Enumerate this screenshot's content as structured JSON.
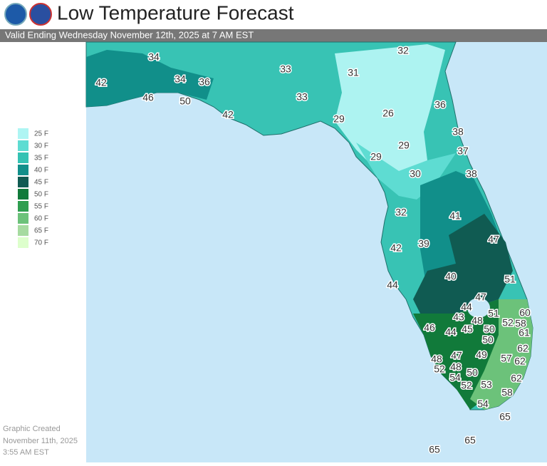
{
  "header": {
    "title": "Low Temperature Forecast",
    "subtitle": "Valid Ending Wednesday November 12th, 2025 at 7 AM EST"
  },
  "legend": [
    {
      "label": "25 F",
      "color": "#aef5f3"
    },
    {
      "label": "30 F",
      "color": "#5edcd2"
    },
    {
      "label": "35 F",
      "color": "#34c2b3"
    },
    {
      "label": "40 F",
      "color": "#118f8a"
    },
    {
      "label": "45 F",
      "color": "#105b52"
    },
    {
      "label": "50 F",
      "color": "#117a3a"
    },
    {
      "label": "55 F",
      "color": "#2f9e50"
    },
    {
      "label": "60 F",
      "color": "#6cc27a"
    },
    {
      "label": "65 F",
      "color": "#a6dba0"
    },
    {
      "label": "70 F",
      "color": "#ddffcc"
    }
  ],
  "temperatures": [
    34,
    33,
    32,
    31,
    42,
    34,
    36,
    46,
    50,
    33,
    36,
    42,
    26,
    29,
    38,
    29,
    37,
    29,
    30,
    38,
    32,
    41,
    47,
    42,
    39,
    40,
    51,
    44,
    47,
    44,
    60,
    51,
    43,
    48,
    58,
    52,
    46,
    45,
    50,
    44,
    61,
    50,
    62,
    49,
    48,
    47,
    57,
    62,
    52,
    48,
    54,
    50,
    62,
    53,
    52,
    58,
    54,
    65,
    65,
    65
  ],
  "footer": [
    "Graphic Created",
    "November 11th, 2025",
    "3:55 AM EST"
  ]
}
